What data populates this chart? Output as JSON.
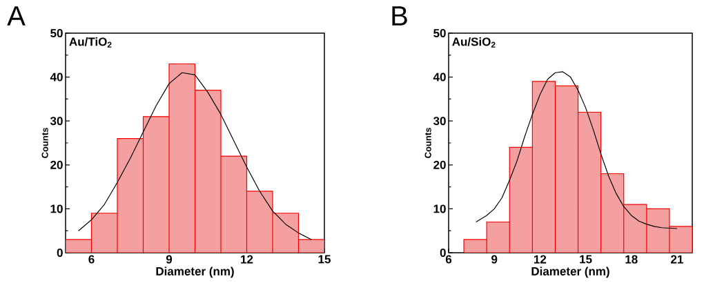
{
  "chart_data": [
    {
      "type": "histogram",
      "title": "A",
      "xlabel": "Diameter (nm)",
      "ylabel": "Counts",
      "annotations": [
        "Au/TiO$_{2}$"
      ],
      "xlim": [
        5,
        15
      ],
      "ylim": [
        0,
        50
      ],
      "xticks": [
        6,
        9,
        12,
        15
      ],
      "yticks": [
        0,
        10,
        20,
        30,
        40,
        50
      ],
      "grid": false,
      "series": [
        {
          "type": "histogram",
          "color": "#f4a0a0",
          "bins": [
            5,
            6,
            7,
            8,
            9,
            10,
            11,
            12,
            13,
            14,
            15
          ],
          "values": [
            3,
            9,
            26,
            31,
            43,
            37,
            22,
            14,
            9,
            3
          ]
        },
        {
          "type": "line",
          "color": "#000000",
          "x": [
            5.5,
            6,
            6.5,
            7,
            7.5,
            8,
            8.5,
            9,
            9.5,
            10,
            10.5,
            11,
            11.5,
            12,
            12.5,
            13,
            13.5,
            14,
            14.5
          ],
          "values": [
            5,
            7.5,
            11,
            16,
            21.5,
            27.5,
            33.5,
            38.5,
            41,
            40.5,
            36.5,
            31.5,
            25.5,
            19.5,
            14,
            9.5,
            6.5,
            4.5,
            3
          ]
        }
      ]
    },
    {
      "type": "histogram",
      "title": "B",
      "xlabel": "Diameter (nm)",
      "ylabel": "Counts",
      "annotations": [
        "Au/SiO$_{2}$"
      ],
      "xlim": [
        6,
        22
      ],
      "ylim": [
        0,
        50
      ],
      "xticks": [
        6,
        9,
        12,
        15,
        18,
        21
      ],
      "yticks": [
        0,
        10,
        20,
        30,
        40,
        50
      ],
      "grid": false,
      "series": [
        {
          "type": "histogram",
          "color": "#f4a0a0",
          "bins": [
            7,
            8.5,
            10,
            11.5,
            13,
            14.5,
            16,
            17.5,
            19,
            20.5,
            22
          ],
          "values": [
            3,
            7,
            24,
            39,
            38,
            32,
            18,
            11,
            10,
            6
          ]
        },
        {
          "type": "line",
          "color": "#000000",
          "x": [
            7.8,
            8.5,
            9,
            9.5,
            10,
            10.5,
            11,
            11.5,
            12,
            12.5,
            13,
            13.5,
            14,
            14.5,
            15,
            15.5,
            16,
            16.5,
            17,
            17.5,
            18,
            18.5,
            19,
            19.5,
            20,
            20.5,
            21
          ],
          "values": [
            7,
            8.5,
            10,
            12.5,
            16.5,
            21,
            26.5,
            31.5,
            36,
            39.5,
            41,
            41.2,
            40,
            37,
            33,
            28,
            22.5,
            17.5,
            13.5,
            10.5,
            8.5,
            7.2,
            6.5,
            6,
            5.7,
            5.6,
            5.5
          ]
        }
      ]
    }
  ]
}
